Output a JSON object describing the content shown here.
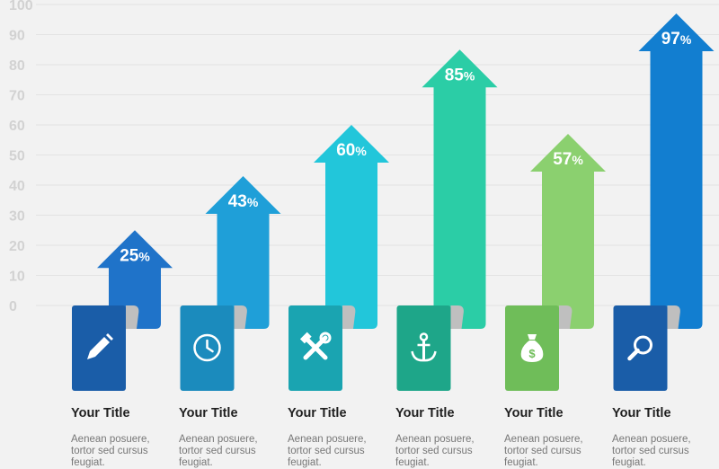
{
  "chart_data": {
    "type": "bar",
    "style": "arrow-infographic",
    "ylim": [
      0,
      100
    ],
    "yticks": [
      0,
      10,
      20,
      30,
      40,
      50,
      60,
      70,
      80,
      90,
      100
    ],
    "grid": true,
    "values": [
      25,
      43,
      60,
      85,
      57,
      97
    ],
    "value_suffix": "%",
    "colors": [
      "#1f73c9",
      "#1f9fd8",
      "#22c6da",
      "#2bcda6",
      "#8bd06f",
      "#127ed0"
    ],
    "card_colors": [
      "#1a5da8",
      "#1b8bbd",
      "#1aa4b1",
      "#1ea689",
      "#6fbd59",
      "#1a5da8"
    ],
    "icons": [
      "pencil-icon",
      "clock-icon",
      "tools-icon",
      "anchor-icon",
      "money-bag-icon",
      "magnifier-icon"
    ]
  },
  "items": [
    {
      "title": "Your Title",
      "description": "Aenean posuere, tortor sed cursus feugiat."
    },
    {
      "title": "Your Title",
      "description": "Aenean posuere, tortor sed cursus feugiat."
    },
    {
      "title": "Your Title",
      "description": "Aenean posuere, tortor sed cursus feugiat."
    },
    {
      "title": "Your Title",
      "description": "Aenean posuere, tortor sed cursus feugiat."
    },
    {
      "title": "Your Title",
      "description": "Aenean posuere, tortor sed cursus feugiat."
    },
    {
      "title": "Your Title",
      "description": "Aenean posuere, tortor sed cursus feugiat."
    }
  ]
}
